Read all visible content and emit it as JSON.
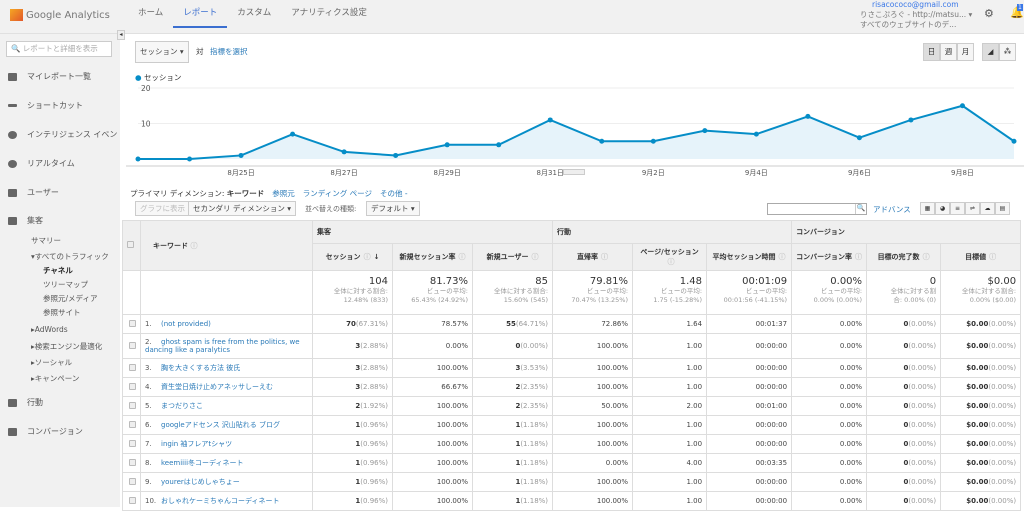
{
  "header": {
    "logo": "Google Analytics",
    "nav": [
      "ホーム",
      "レポート",
      "カスタム",
      "アナリティクス設定"
    ],
    "active_nav": 1,
    "email": "risacococo@gmail.com",
    "property": "りさこぷろぐ - http://matsu...",
    "view": "すべてのウェブサイトのデ...",
    "notification_count": "1"
  },
  "sidebar": {
    "search_placeholder": "レポートと詳細を表示",
    "items": [
      "マイレポート一覧",
      "ショートカット",
      "インテリジェンス イベン",
      "リアルタイム",
      "ユーザー",
      "集客",
      "行動",
      "コンバージョン"
    ],
    "acq_sub": [
      "サマリー",
      "▾すべてのトラフィック",
      "チャネル",
      "ツリーマップ",
      "参照元/メディア",
      "参照サイト",
      "▸AdWords",
      "▸検索エンジン最適化",
      "▸ソーシャル",
      "▸キャンペーン"
    ]
  },
  "controls": {
    "metric": "セッション",
    "vs": "対",
    "select_metric": "指標を選択",
    "periods": [
      "日",
      "週",
      "月"
    ],
    "legend": "セッション"
  },
  "chart_data": {
    "type": "area",
    "series": [
      {
        "name": "セッション",
        "values": [
          0,
          0,
          1,
          7,
          2,
          1,
          4,
          4,
          11,
          5,
          5,
          8,
          7,
          12,
          6,
          11,
          15,
          5
        ]
      }
    ],
    "x": [
      "8/23",
      "8/24",
      "8/25",
      "8/26",
      "8/27",
      "8/28",
      "8/29",
      "8/30",
      "8/31",
      "9/1",
      "9/2",
      "9/3",
      "9/4",
      "9/5",
      "9/6",
      "9/7",
      "9/8",
      "9/9"
    ],
    "x_tick_labels": [
      "8月25日",
      "8月27日",
      "8月29日",
      "8月31日",
      "9月2日",
      "9月4日",
      "9月6日",
      "9月8日"
    ],
    "y_ticks": [
      "20",
      "10"
    ],
    "ylim": [
      0,
      20
    ],
    "color": "#058dc7",
    "grid": true
  },
  "dimension": {
    "label": "プライマリ ディメンション:",
    "current": "キーワード",
    "others": [
      "参照元",
      "ランディング ページ",
      "その他 -"
    ]
  },
  "toolbar": {
    "plot": "グラフに表示",
    "secondary": "セカンダリ ディメンション",
    "sort_label": "並べ替えの種類:",
    "sort": "デフォルト",
    "advanced": "アドバンス"
  },
  "table": {
    "groups": [
      "集客",
      "行動",
      "コンバージョン"
    ],
    "key_header": "キーワード",
    "columns": [
      "セッション",
      "新規セッション率",
      "新規ユーザー",
      "直帰率",
      "ページ/セッション",
      "平均セッション時間",
      "コンバージョン率",
      "目標の完了数",
      "目標値"
    ],
    "totals": [
      [
        "104",
        "全体に対する割合:",
        "12.48% (833)"
      ],
      [
        "81.73%",
        "ビューの平均:",
        "65.43% (24.92%)"
      ],
      [
        "85",
        "全体に対する割合:",
        "15.60% (545)"
      ],
      [
        "79.81%",
        "ビューの平均:",
        "70.47% (13.25%)"
      ],
      [
        "1.48",
        "ビューの平均:",
        "1.75 (-15.28%)"
      ],
      [
        "00:01:09",
        "ビューの平均:",
        "00:01:56 (-41.15%)"
      ],
      [
        "0.00%",
        "ビューの平均:",
        "0.00% (0.00%)"
      ],
      [
        "0",
        "全体に対する割",
        "合: 0.00% (0)"
      ],
      [
        "$0.00",
        "全体に対する割合:",
        "0.00% ($0.00)"
      ]
    ],
    "rows": [
      [
        "1.",
        "(not provided)",
        "70",
        "(67.31%)",
        "78.57%",
        "55",
        "(64.71%)",
        "72.86%",
        "1.64",
        "00:01:37",
        "0.00%",
        "0",
        "(0.00%)",
        "$0.00",
        "(0.00%)"
      ],
      [
        "2.",
        "ghost spam is free from the politics, we dancing like a paralytics",
        "3",
        "(2.88%)",
        "0.00%",
        "0",
        "(0.00%)",
        "100.00%",
        "1.00",
        "00:00:00",
        "0.00%",
        "0",
        "(0.00%)",
        "$0.00",
        "(0.00%)"
      ],
      [
        "3.",
        "胸を大きくする方法 彼氏",
        "3",
        "(2.88%)",
        "100.00%",
        "3",
        "(3.53%)",
        "100.00%",
        "1.00",
        "00:00:00",
        "0.00%",
        "0",
        "(0.00%)",
        "$0.00",
        "(0.00%)"
      ],
      [
        "4.",
        "資生堂日焼け止めアネッサしーえむ",
        "3",
        "(2.88%)",
        "66.67%",
        "2",
        "(2.35%)",
        "100.00%",
        "1.00",
        "00:00:00",
        "0.00%",
        "0",
        "(0.00%)",
        "$0.00",
        "(0.00%)"
      ],
      [
        "5.",
        "まつだりさこ",
        "2",
        "(1.92%)",
        "100.00%",
        "2",
        "(2.35%)",
        "50.00%",
        "2.00",
        "00:01:00",
        "0.00%",
        "0",
        "(0.00%)",
        "$0.00",
        "(0.00%)"
      ],
      [
        "6.",
        "googleアドセンス 沢山貼れる ブログ",
        "1",
        "(0.96%)",
        "100.00%",
        "1",
        "(1.18%)",
        "100.00%",
        "1.00",
        "00:00:00",
        "0.00%",
        "0",
        "(0.00%)",
        "$0.00",
        "(0.00%)"
      ],
      [
        "7.",
        "ingin 袖フレアtシャツ",
        "1",
        "(0.96%)",
        "100.00%",
        "1",
        "(1.18%)",
        "100.00%",
        "1.00",
        "00:00:00",
        "0.00%",
        "0",
        "(0.00%)",
        "$0.00",
        "(0.00%)"
      ],
      [
        "8.",
        "keemiiii冬コーディネート",
        "1",
        "(0.96%)",
        "100.00%",
        "1",
        "(1.18%)",
        "0.00%",
        "4.00",
        "00:03:35",
        "0.00%",
        "0",
        "(0.00%)",
        "$0.00",
        "(0.00%)"
      ],
      [
        "9.",
        "yourerはじめしゃちょー",
        "1",
        "(0.96%)",
        "100.00%",
        "1",
        "(1.18%)",
        "100.00%",
        "1.00",
        "00:00:00",
        "0.00%",
        "0",
        "(0.00%)",
        "$0.00",
        "(0.00%)"
      ],
      [
        "10.",
        "おしゃれケーミちゃんコーディネート",
        "1",
        "(0.96%)",
        "100.00%",
        "1",
        "(1.18%)",
        "100.00%",
        "1.00",
        "00:00:00",
        "0.00%",
        "0",
        "(0.00%)",
        "$0.00",
        "(0.00%)"
      ]
    ]
  }
}
